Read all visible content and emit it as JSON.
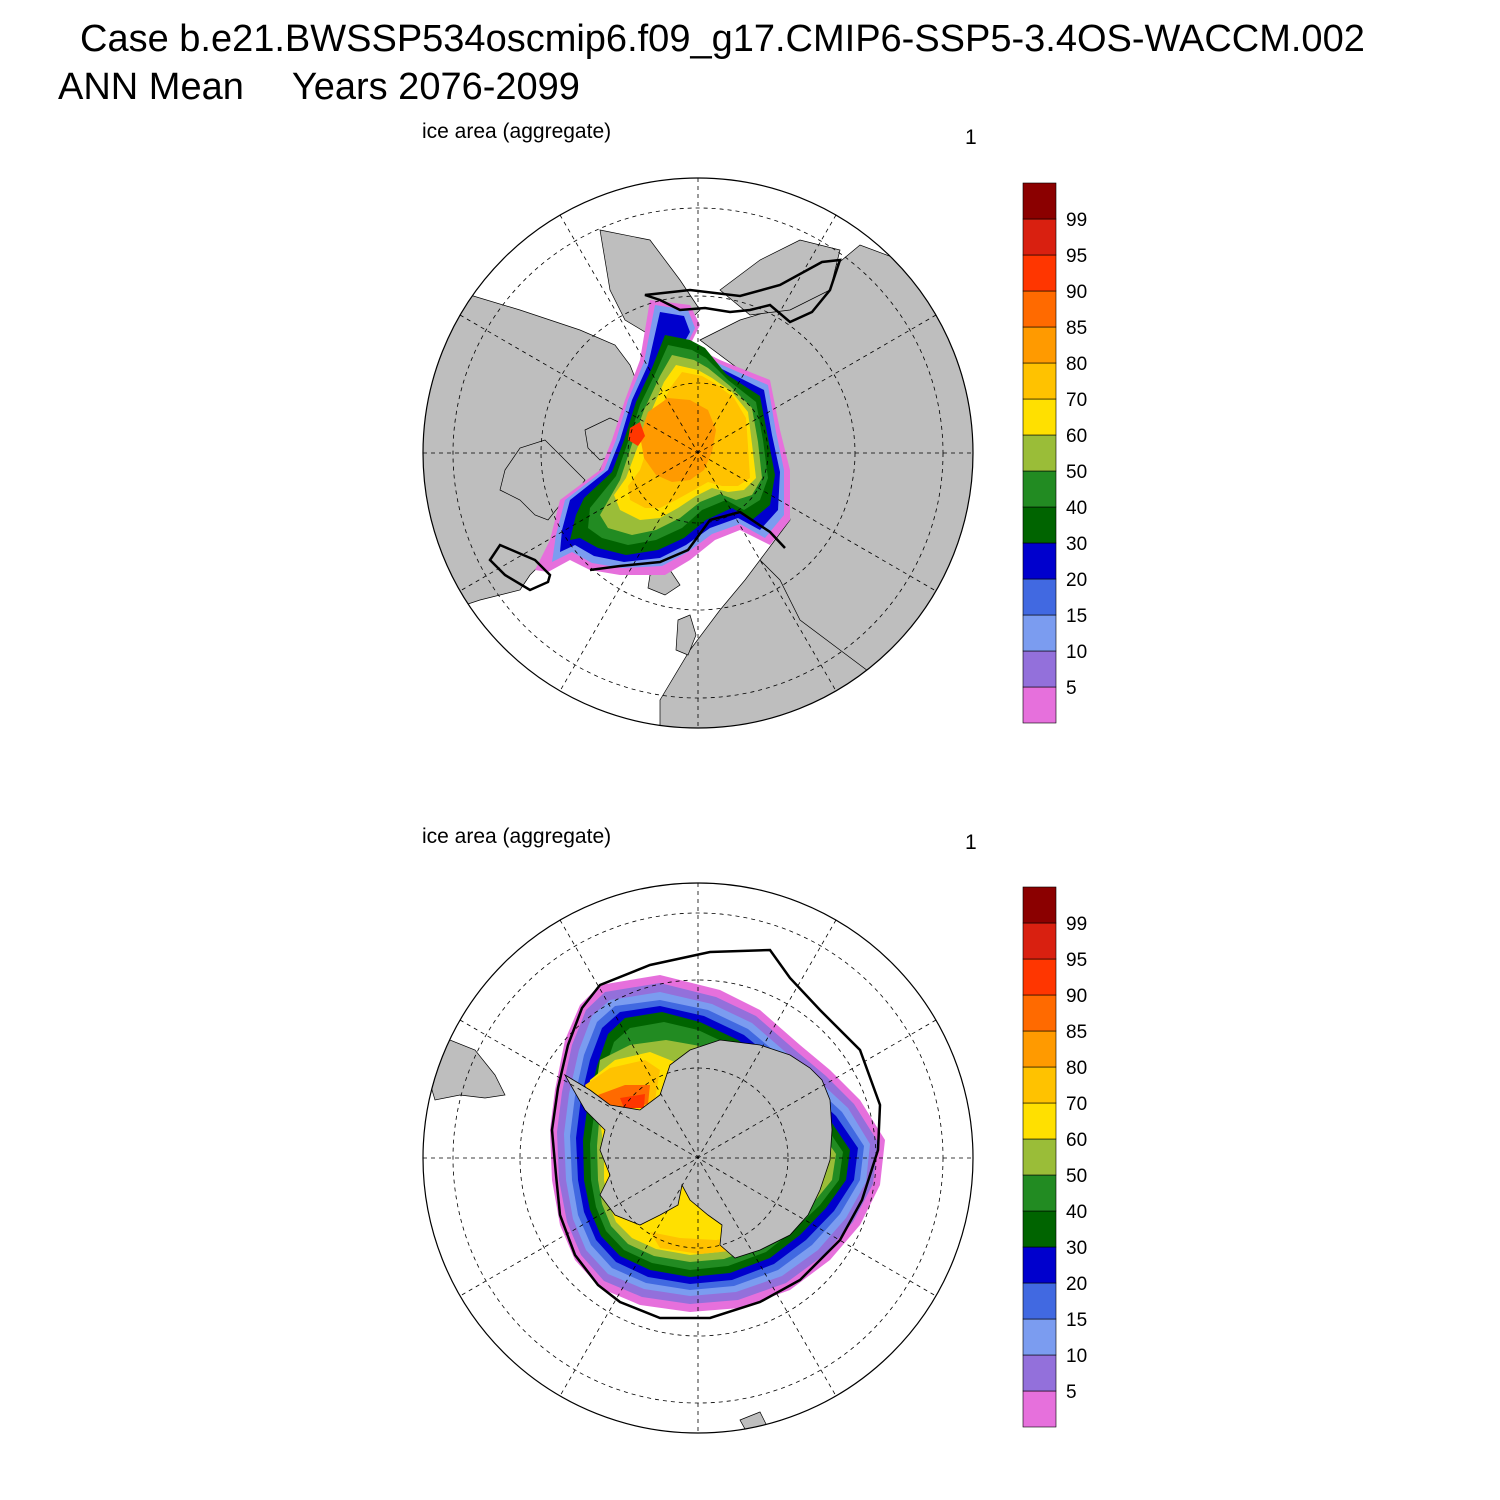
{
  "header": {
    "case_title": "Case b.e21.BWSSP534oscmip6.f09_g17.CMIP6-SSP5-3.4OS-WACCM.002",
    "season": "ANN Mean",
    "years": "Years 2076-2099"
  },
  "panels": [
    {
      "id": "north",
      "variable_label": "ice area  (aggregate)",
      "panel_number": "1",
      "hemisphere": "Northern",
      "projection": "polar stereographic"
    },
    {
      "id": "south",
      "variable_label": "ice area  (aggregate)",
      "panel_number": "1",
      "hemisphere": "Southern",
      "projection": "polar stereographic"
    }
  ],
  "colorbar": {
    "levels": [
      "5",
      "10",
      "15",
      "20",
      "30",
      "40",
      "50",
      "60",
      "70",
      "80",
      "85",
      "90",
      "95",
      "99"
    ],
    "colors": [
      "#e670dc",
      "#9370db",
      "#7b9cf0",
      "#4169e1",
      "#0000cd",
      "#006400",
      "#228b22",
      "#9abd38",
      "#ffe000",
      "#ffc200",
      "#ff9a00",
      "#ff6a00",
      "#ff3600",
      "#d92010",
      "#8b0000"
    ]
  },
  "map_colors": {
    "land": "#bebebe",
    "ocean": "#ffffff",
    "observed_edge_line": "#000000"
  }
}
